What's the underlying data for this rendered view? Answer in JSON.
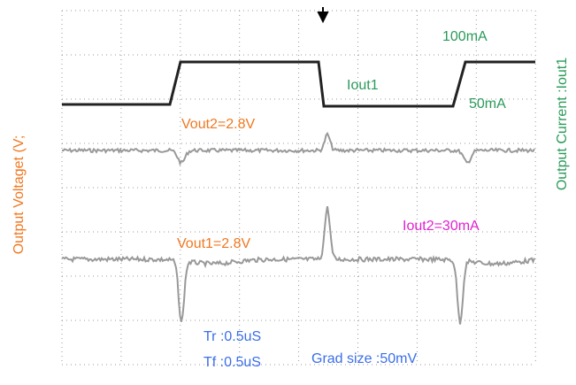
{
  "axis_labels": {
    "left": "Output Voltaget (V;",
    "right": "Output Current :Iout1"
  },
  "annotations": {
    "iout_high": "100mA",
    "iout_name": "Iout1",
    "iout_low": "50mA",
    "vout2": "Vout2=2.8V",
    "vout1": "Vout1=2.8V",
    "iout2": "Iout2=30mA",
    "tr": "Tr :0.5uS",
    "tf": "Tf :0.5uS",
    "grad": "Grad size :50mV"
  }
}
